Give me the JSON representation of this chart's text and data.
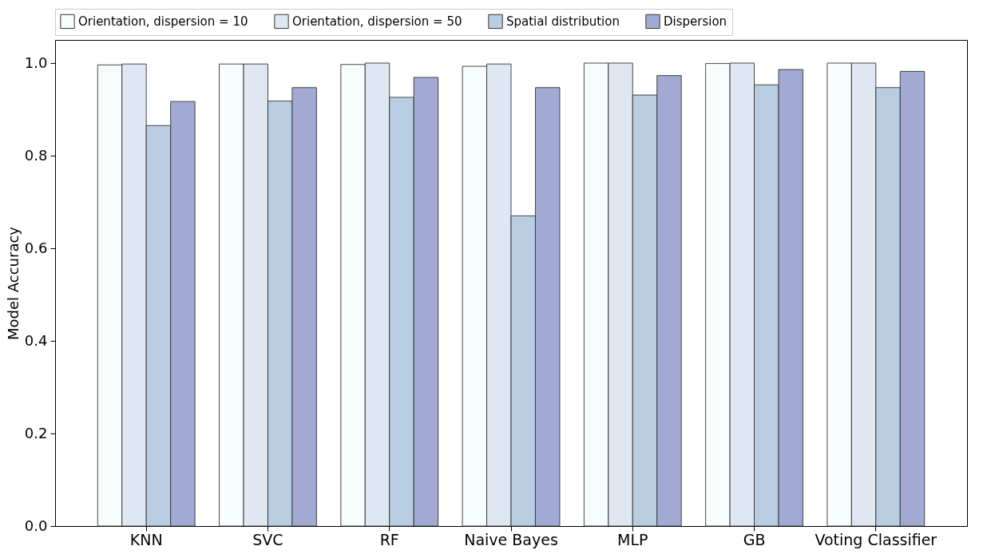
{
  "chart_data": {
    "type": "bar",
    "ylabel": "Model Accuracy",
    "categories": [
      "KNN",
      "SVC",
      "RF",
      "Naive Bayes",
      "MLP",
      "GB",
      "Voting Classifier"
    ],
    "series": [
      {
        "name": "Orientation, dispersion = 10",
        "color": "#f7fcfd",
        "values": [
          0.996,
          0.998,
          0.997,
          0.993,
          1.0,
          0.999,
          1.0
        ]
      },
      {
        "name": "Orientation, dispersion = 50",
        "color": "#dfe8f2",
        "values": [
          0.998,
          0.998,
          1.0,
          0.998,
          1.0,
          1.0,
          1.0
        ]
      },
      {
        "name": "Spatial distribution",
        "color": "#b9cde2",
        "values": [
          0.865,
          0.918,
          0.926,
          0.67,
          0.931,
          0.953,
          0.947
        ]
      },
      {
        "name": "Dispersion",
        "color": "#a2a9d2",
        "values": [
          0.917,
          0.947,
          0.969,
          0.947,
          0.973,
          0.986,
          0.982
        ]
      }
    ],
    "ylim": [
      0,
      1.05
    ],
    "yticks": [
      {
        "value": 0,
        "label": "0.0"
      },
      0.2,
      0.4,
      0.6,
      0.8,
      {
        "value": 1,
        "label": "1.0"
      }
    ],
    "grid": false,
    "legend": "top"
  }
}
